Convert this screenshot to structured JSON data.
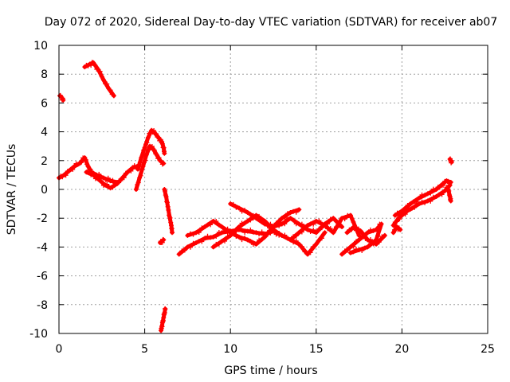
{
  "chart_data": {
    "type": "scatter",
    "title": "Day 072 of 2020, Sidereal Day-to-day VTEC variation (SDTVAR) for receiver ab07",
    "xlabel": "GPS time / hours",
    "ylabel": "SDTVAR / TECUs",
    "xlim": [
      0,
      25
    ],
    "ylim": [
      -10,
      10
    ],
    "xticks": [
      0,
      5,
      10,
      15,
      20,
      25
    ],
    "yticks": [
      -10,
      -8,
      -6,
      -4,
      -2,
      0,
      2,
      4,
      6,
      8,
      10
    ],
    "grid": true,
    "marker": "+",
    "color": "#ff0000",
    "series": [
      {
        "name": "seg1",
        "points": [
          [
            0.05,
            6.5
          ],
          [
            0.15,
            6.4
          ],
          [
            0.25,
            6.2
          ]
        ]
      },
      {
        "name": "seg2",
        "points": [
          [
            1.5,
            8.5
          ],
          [
            1.8,
            8.7
          ],
          [
            2.0,
            8.8
          ],
          [
            2.3,
            8.3
          ],
          [
            2.6,
            7.6
          ],
          [
            2.9,
            7.0
          ],
          [
            3.2,
            6.5
          ]
        ]
      },
      {
        "name": "seg3",
        "points": [
          [
            0.0,
            0.8
          ],
          [
            0.3,
            1.0
          ],
          [
            0.6,
            1.3
          ],
          [
            0.9,
            1.6
          ],
          [
            1.2,
            1.8
          ],
          [
            1.5,
            2.2
          ],
          [
            1.7,
            1.6
          ],
          [
            1.9,
            1.2
          ],
          [
            2.2,
            1.0
          ],
          [
            2.6,
            0.8
          ],
          [
            3.0,
            0.6
          ],
          [
            3.4,
            0.5
          ]
        ]
      },
      {
        "name": "seg4",
        "points": [
          [
            1.6,
            1.2
          ],
          [
            2.0,
            1.0
          ],
          [
            2.4,
            0.6
          ],
          [
            2.7,
            0.3
          ],
          [
            3.0,
            0.1
          ],
          [
            3.4,
            0.4
          ],
          [
            3.7,
            0.8
          ],
          [
            4.0,
            1.2
          ],
          [
            4.3,
            1.5
          ],
          [
            4.6,
            1.6
          ]
        ]
      },
      {
        "name": "seg5",
        "points": [
          [
            4.5,
            0.0
          ],
          [
            4.7,
            0.8
          ],
          [
            4.9,
            1.6
          ],
          [
            5.1,
            2.4
          ],
          [
            5.3,
            3.0
          ],
          [
            5.5,
            2.8
          ],
          [
            5.7,
            2.4
          ],
          [
            5.9,
            2.0
          ],
          [
            6.1,
            1.8
          ]
        ]
      },
      {
        "name": "seg6",
        "points": [
          [
            4.6,
            1.4
          ],
          [
            4.8,
            2.2
          ],
          [
            5.0,
            2.9
          ],
          [
            5.2,
            3.6
          ],
          [
            5.4,
            4.1
          ],
          [
            5.6,
            3.9
          ],
          [
            5.8,
            3.6
          ],
          [
            6.0,
            3.3
          ],
          [
            6.1,
            2.9
          ],
          [
            6.15,
            2.5
          ]
        ]
      },
      {
        "name": "seg7",
        "points": [
          [
            6.15,
            0.0
          ],
          [
            6.25,
            -0.5
          ],
          [
            6.35,
            -1.2
          ],
          [
            6.45,
            -1.9
          ],
          [
            6.55,
            -2.5
          ],
          [
            6.6,
            -3.0
          ]
        ]
      },
      {
        "name": "seg8",
        "points": [
          [
            5.95,
            -9.8
          ],
          [
            6.0,
            -9.5
          ],
          [
            6.05,
            -9.2
          ],
          [
            6.1,
            -8.9
          ],
          [
            6.15,
            -8.6
          ],
          [
            6.2,
            -8.3
          ]
        ]
      },
      {
        "name": "seg9",
        "points": [
          [
            5.9,
            -3.7
          ],
          [
            6.0,
            -3.6
          ],
          [
            6.1,
            -3.5
          ]
        ]
      },
      {
        "name": "seg10",
        "points": [
          [
            7.0,
            -4.5
          ],
          [
            7.5,
            -4.0
          ],
          [
            8.0,
            -3.7
          ],
          [
            8.5,
            -3.4
          ],
          [
            9.0,
            -3.3
          ],
          [
            9.5,
            -3.0
          ],
          [
            10.0,
            -2.9
          ],
          [
            10.5,
            -2.8
          ],
          [
            11.0,
            -2.9
          ],
          [
            11.5,
            -3.0
          ],
          [
            12.0,
            -3.1
          ],
          [
            12.5,
            -2.9
          ],
          [
            13.0,
            -3.2
          ]
        ]
      },
      {
        "name": "seg11",
        "points": [
          [
            7.5,
            -3.2
          ],
          [
            8.0,
            -3.0
          ],
          [
            8.5,
            -2.6
          ],
          [
            9.0,
            -2.2
          ],
          [
            9.5,
            -2.6
          ],
          [
            10.0,
            -3.0
          ],
          [
            10.5,
            -3.3
          ],
          [
            11.0,
            -3.5
          ],
          [
            11.5,
            -3.8
          ],
          [
            12.0,
            -3.3
          ],
          [
            12.5,
            -2.6
          ],
          [
            13.0,
            -2.0
          ],
          [
            13.5,
            -1.6
          ],
          [
            14.0,
            -1.4
          ]
        ]
      },
      {
        "name": "seg12",
        "points": [
          [
            9.0,
            -4.0
          ],
          [
            9.5,
            -3.6
          ],
          [
            10.0,
            -3.2
          ],
          [
            10.5,
            -2.6
          ],
          [
            11.0,
            -2.2
          ],
          [
            11.5,
            -1.8
          ],
          [
            12.0,
            -2.2
          ],
          [
            12.5,
            -2.8
          ],
          [
            13.0,
            -3.2
          ],
          [
            13.5,
            -3.5
          ],
          [
            14.0,
            -3.8
          ],
          [
            14.5,
            -4.5
          ],
          [
            15.0,
            -3.8
          ],
          [
            15.5,
            -3.0
          ]
        ]
      },
      {
        "name": "seg13",
        "points": [
          [
            10.0,
            -1.0
          ],
          [
            10.5,
            -1.3
          ],
          [
            11.0,
            -1.6
          ],
          [
            11.5,
            -2.0
          ],
          [
            12.0,
            -2.4
          ],
          [
            12.5,
            -2.6
          ],
          [
            13.0,
            -2.4
          ],
          [
            13.5,
            -2.0
          ],
          [
            14.0,
            -2.4
          ],
          [
            14.5,
            -2.8
          ],
          [
            15.0,
            -3.0
          ],
          [
            15.5,
            -2.4
          ],
          [
            16.0,
            -2.0
          ],
          [
            16.5,
            -2.6
          ]
        ]
      },
      {
        "name": "seg14",
        "points": [
          [
            13.5,
            -3.5
          ],
          [
            14.0,
            -3.0
          ],
          [
            14.5,
            -2.5
          ],
          [
            15.0,
            -2.2
          ],
          [
            15.5,
            -2.5
          ],
          [
            16.0,
            -3.0
          ],
          [
            16.5,
            -2.0
          ],
          [
            17.0,
            -1.8
          ],
          [
            17.5,
            -3.2
          ]
        ]
      },
      {
        "name": "seg15",
        "points": [
          [
            16.5,
            -4.5
          ],
          [
            17.0,
            -4.0
          ],
          [
            17.5,
            -3.5
          ],
          [
            18.0,
            -3.0
          ],
          [
            18.5,
            -2.8
          ],
          [
            18.8,
            -2.4
          ],
          [
            18.5,
            -3.5
          ],
          [
            18.0,
            -4.0
          ],
          [
            17.5,
            -4.2
          ],
          [
            17.0,
            -4.4
          ]
        ]
      },
      {
        "name": "seg16",
        "points": [
          [
            16.8,
            -3.0
          ],
          [
            17.2,
            -2.6
          ],
          [
            17.6,
            -2.9
          ],
          [
            18.0,
            -3.5
          ],
          [
            18.5,
            -3.8
          ],
          [
            19.0,
            -3.2
          ]
        ]
      },
      {
        "name": "seg17",
        "points": [
          [
            19.5,
            -2.5
          ],
          [
            19.8,
            -2.0
          ],
          [
            20.0,
            -1.8
          ],
          [
            20.3,
            -1.5
          ],
          [
            20.6,
            -1.3
          ],
          [
            21.0,
            -1.0
          ],
          [
            21.5,
            -0.8
          ],
          [
            22.0,
            -0.5
          ],
          [
            22.5,
            -0.1
          ],
          [
            22.8,
            0.3
          ]
        ]
      },
      {
        "name": "seg18",
        "points": [
          [
            19.6,
            -1.8
          ],
          [
            20.0,
            -1.5
          ],
          [
            20.5,
            -1.0
          ],
          [
            21.0,
            -0.6
          ],
          [
            21.5,
            -0.3
          ],
          [
            22.0,
            0.0
          ],
          [
            22.3,
            0.3
          ],
          [
            22.6,
            0.6
          ],
          [
            22.85,
            0.5
          ]
        ]
      },
      {
        "name": "seg19",
        "points": [
          [
            19.5,
            -3.0
          ],
          [
            19.7,
            -2.6
          ],
          [
            19.9,
            -2.8
          ]
        ]
      },
      {
        "name": "seg20",
        "points": [
          [
            22.7,
            0.0
          ],
          [
            22.8,
            -0.5
          ],
          [
            22.85,
            -0.8
          ]
        ]
      },
      {
        "name": "seg21",
        "points": [
          [
            22.8,
            2.1
          ],
          [
            22.85,
            2.0
          ],
          [
            22.9,
            1.9
          ]
        ]
      }
    ]
  }
}
